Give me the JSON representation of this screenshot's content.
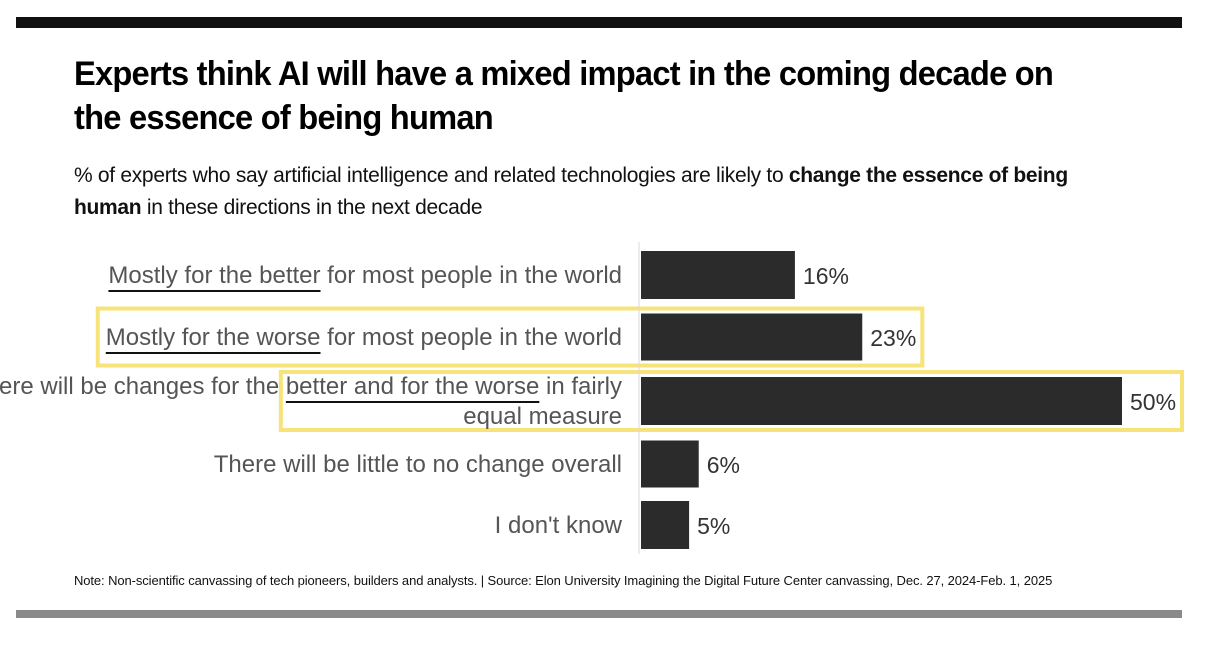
{
  "title": "Experts think AI will have a mixed impact in the coming decade on the essence of being human",
  "subtitle": {
    "pre": "% of experts who say artificial intelligence and related technologies are likely to ",
    "bold": "change the essence of being human",
    "post": " in these directions in the next decade"
  },
  "note": "Note: Non-scientific canvassing of tech pioneers, builders and analysts. | Source: Elon University Imagining the Digital Future Center canvassing,  Dec. 27, 2024-Feb. 1, 2025",
  "colors": {
    "bar": "#2b2b2b",
    "highlight": "#f7e37a",
    "label": "#555555",
    "axis": "#d8d8d8"
  },
  "chart_data": {
    "type": "bar",
    "orientation": "horizontal",
    "title": "Experts think AI will have a mixed impact in the coming decade on the essence of being human",
    "xlim": [
      0,
      50
    ],
    "grid": false,
    "categories": [
      "Mostly for the better for most people in the world",
      "Mostly for the worse for most people in the world",
      "There will be changes for the better and for the worse in fairly equal measure",
      "There will be little to no change overall",
      "I don't know"
    ],
    "category_lines": [
      [
        "Mostly for the better for most people in the world"
      ],
      [
        "Mostly for the worse for most people in the world"
      ],
      [
        "There will be changes for the better and for the worse in fairly",
        "equal measure"
      ],
      [
        "There will be little to no change overall"
      ],
      [
        "I don't know"
      ]
    ],
    "underlined": [
      "Mostly for the better",
      "Mostly for the worse",
      "better and for the worse",
      "",
      ""
    ],
    "highlighted": [
      false,
      true,
      true,
      false,
      false
    ],
    "values": [
      16,
      23,
      50,
      6,
      5
    ],
    "value_labels": [
      "16%",
      "23%",
      "50%",
      "6%",
      "5%"
    ]
  }
}
